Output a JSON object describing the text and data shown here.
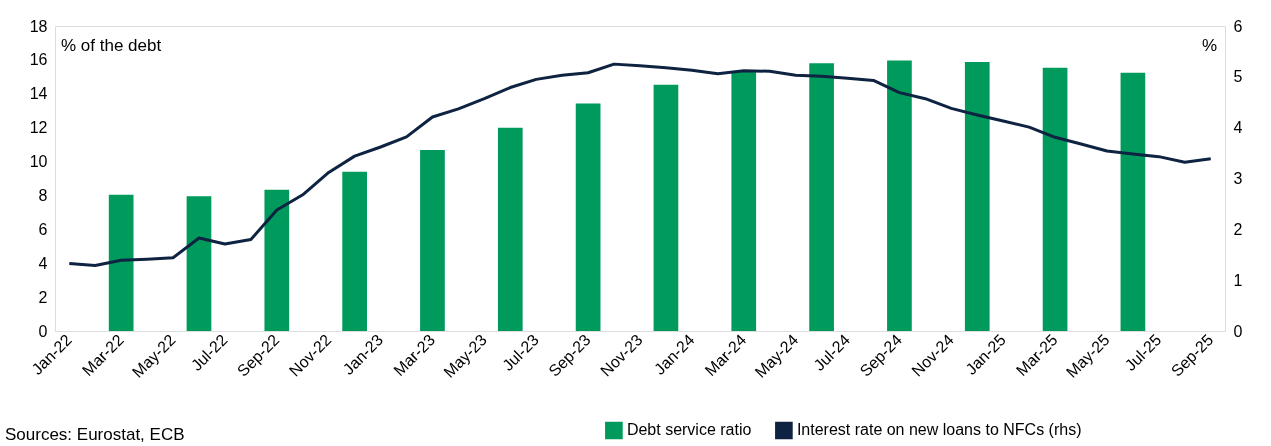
{
  "chart_data": {
    "type": "bar",
    "ylabel": "% of the debt",
    "y2label": "%",
    "categories": [
      "Jan-22",
      null,
      "Mar-22",
      null,
      "May-22",
      null,
      "Jul-22",
      null,
      "Sep-22",
      null,
      "Nov-22",
      null,
      "Jan-23",
      null,
      "Mar-23",
      null,
      "May-23",
      null,
      "Jul-23",
      null,
      "Sep-23",
      null,
      "Nov-23",
      null,
      "Jan-24",
      null,
      "Mar-24",
      null,
      "May-24",
      null,
      "Jul-24",
      null,
      "Sep-24",
      null,
      "Nov-24",
      null,
      "Jan-25",
      null,
      "Mar-25",
      null,
      "May-25",
      null,
      "Jul-25",
      null,
      "Sep-25"
    ],
    "series": [
      {
        "name": "Debt service ratio",
        "color": "#009a5c",
        "values": [
          null,
          null,
          8.04,
          null,
          null,
          7.95,
          null,
          null,
          8.33,
          null,
          null,
          9.4,
          null,
          null,
          10.68,
          null,
          null,
          12.0,
          null,
          null,
          13.43,
          null,
          null,
          14.53,
          null,
          null,
          15.3,
          null,
          null,
          15.8,
          null,
          null,
          15.97,
          null,
          null,
          15.87,
          null,
          null,
          15.53,
          null,
          null,
          15.24,
          null,
          null,
          null
        ]
      },
      {
        "name": "Interest rate on new loans to NFCs (rhs)",
        "type": "line",
        "axis": "y2",
        "color": "#0d2341",
        "values": [
          1.33,
          1.29,
          1.39,
          1.41,
          1.44,
          1.83,
          1.71,
          1.8,
          2.38,
          2.68,
          3.12,
          3.44,
          3.62,
          3.82,
          4.21,
          4.37,
          4.57,
          4.79,
          4.95,
          5.03,
          5.08,
          5.25,
          5.22,
          5.18,
          5.13,
          5.06,
          5.12,
          5.11,
          5.03,
          5.01,
          4.97,
          4.93,
          4.69,
          4.57,
          4.38,
          4.25,
          4.13,
          4.01,
          3.81,
          3.68,
          3.54,
          3.48,
          3.43,
          3.32,
          3.39
        ]
      }
    ],
    "ylim": [
      0,
      18
    ],
    "yticks": [
      0,
      2,
      4,
      6,
      8,
      10,
      12,
      14,
      16,
      18
    ],
    "y2lim": [
      0,
      6
    ],
    "y2ticks": [
      0,
      1,
      2,
      3,
      4,
      5,
      6
    ],
    "grid": false,
    "legend": "bottom right",
    "marker": "none",
    "line_style": "solid",
    "annotations": [
      "Sources: Eurostat, ECB"
    ]
  }
}
